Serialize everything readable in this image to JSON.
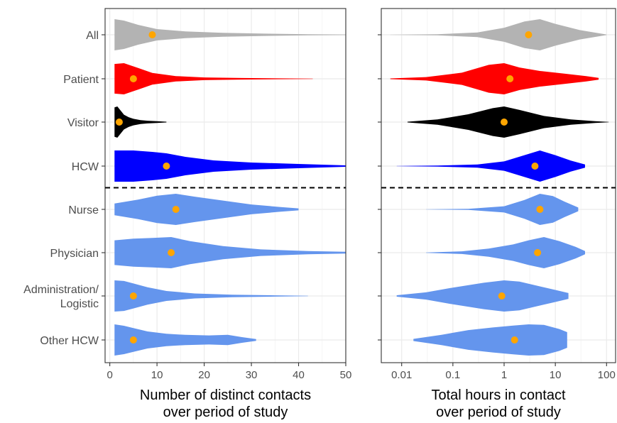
{
  "chart_data": [
    {
      "type": "violin",
      "xlabel": "Number of distinct contacts over period of study",
      "xlabel_lines": [
        "Number of distinct contacts",
        "over period of study"
      ],
      "xscale": "linear",
      "xlim": [
        -1,
        50
      ],
      "xticks": [
        0,
        10,
        20,
        30,
        40,
        50
      ],
      "xtick_labels": [
        "0",
        "10",
        "20",
        "30",
        "40",
        "50"
      ],
      "categories": [
        "All",
        "Patient",
        "Visitor",
        "HCW",
        "Nurse",
        "Physician",
        "Administration/ Logistic",
        "Other HCW"
      ],
      "series": [
        {
          "category": "All",
          "color": "#b3b3b3",
          "median": 9,
          "range": [
            1,
            50
          ],
          "density": [
            [
              1,
              0.55
            ],
            [
              3,
              0.5
            ],
            [
              6,
              0.35
            ],
            [
              10,
              0.2
            ],
            [
              16,
              0.12
            ],
            [
              24,
              0.07
            ],
            [
              33,
              0.04
            ],
            [
              42,
              0.02
            ],
            [
              50,
              0.01
            ]
          ]
        },
        {
          "category": "Patient",
          "color": "#ff0000",
          "median": 5,
          "range": [
            1,
            43
          ],
          "density": [
            [
              1,
              0.55
            ],
            [
              3,
              0.58
            ],
            [
              6,
              0.4
            ],
            [
              9,
              0.22
            ],
            [
              14,
              0.1
            ],
            [
              20,
              0.05
            ],
            [
              28,
              0.03
            ],
            [
              36,
              0.015
            ],
            [
              43,
              0.005
            ]
          ]
        },
        {
          "category": "Visitor",
          "color": "#000000",
          "median": 2,
          "range": [
            1,
            12
          ],
          "density": [
            [
              1,
              0.9
            ],
            [
              1.6,
              0.95
            ],
            [
              2.3,
              0.7
            ],
            [
              3,
              0.45
            ],
            [
              4,
              0.3
            ],
            [
              5,
              0.2
            ],
            [
              6.5,
              0.12
            ],
            [
              8,
              0.08
            ],
            [
              10,
              0.05
            ],
            [
              12,
              0.02
            ]
          ]
        },
        {
          "category": "HCW",
          "color": "#0000ff",
          "median": 12,
          "range": [
            1,
            50
          ],
          "density": [
            [
              1,
              0.22
            ],
            [
              5,
              0.22
            ],
            [
              9,
              0.2
            ],
            [
              12,
              0.18
            ],
            [
              16,
              0.13
            ],
            [
              22,
              0.08
            ],
            [
              30,
              0.05
            ],
            [
              40,
              0.03
            ],
            [
              50,
              0.01
            ]
          ]
        },
        {
          "category": "Nurse",
          "color": "#6495ed",
          "median": 14,
          "range": [
            1,
            40
          ],
          "density": [
            [
              1,
              0.06
            ],
            [
              6,
              0.1
            ],
            [
              10,
              0.14
            ],
            [
              14,
              0.16
            ],
            [
              18,
              0.13
            ],
            [
              24,
              0.09
            ],
            [
              30,
              0.05
            ],
            [
              36,
              0.025
            ],
            [
              40,
              0.01
            ]
          ]
        },
        {
          "category": "Physician",
          "color": "#6495ed",
          "median": 13,
          "range": [
            1,
            50
          ],
          "density": [
            [
              1,
              0.15
            ],
            [
              5,
              0.17
            ],
            [
              9,
              0.18
            ],
            [
              13,
              0.19
            ],
            [
              17,
              0.14
            ],
            [
              24,
              0.08
            ],
            [
              32,
              0.04
            ],
            [
              42,
              0.02
            ],
            [
              50,
              0.01
            ]
          ]
        },
        {
          "category": "Administration/ Logistic",
          "color": "#6495ed",
          "median": 5,
          "range": [
            1,
            42
          ],
          "density": [
            [
              1,
              0.5
            ],
            [
              3,
              0.48
            ],
            [
              5,
              0.4
            ],
            [
              8,
              0.28
            ],
            [
              12,
              0.16
            ],
            [
              18,
              0.08
            ],
            [
              26,
              0.04
            ],
            [
              35,
              0.02
            ],
            [
              42,
              0.005
            ]
          ]
        },
        {
          "category": "Other HCW",
          "color": "#6495ed",
          "median": 5,
          "range": [
            1,
            31
          ],
          "density": [
            [
              1,
              0.55
            ],
            [
              3,
              0.5
            ],
            [
              5,
              0.42
            ],
            [
              8,
              0.3
            ],
            [
              12,
              0.22
            ],
            [
              16,
              0.18
            ],
            [
              21,
              0.16
            ],
            [
              25,
              0.18
            ],
            [
              28,
              0.1
            ],
            [
              31,
              0.03
            ]
          ]
        }
      ],
      "separator_after": "HCW",
      "median_color": "#ffa500",
      "grid": true
    },
    {
      "type": "violin",
      "xlabel": "Total hours in contact over period of study",
      "xlabel_lines": [
        "Total hours in contact",
        "over period of study"
      ],
      "xscale": "log",
      "xlim": [
        0.004,
        150
      ],
      "xticks": [
        0.01,
        0.1,
        1,
        10,
        100
      ],
      "xtick_labels": [
        "0.01",
        "0.1",
        "1",
        "10",
        "100"
      ],
      "categories": [
        "All",
        "Patient",
        "Visitor",
        "HCW",
        "Nurse",
        "Physician",
        "Administration/ Logistic",
        "Other HCW"
      ],
      "series": [
        {
          "category": "All",
          "color": "#b3b3b3",
          "median": 3,
          "range": [
            0.006,
            100
          ],
          "density": [
            [
              0.006,
              0.005
            ],
            [
              0.05,
              0.03
            ],
            [
              0.3,
              0.15
            ],
            [
              1,
              0.45
            ],
            [
              2.5,
              0.85
            ],
            [
              5,
              1.0
            ],
            [
              10,
              0.7
            ],
            [
              30,
              0.3
            ],
            [
              100,
              0.02
            ]
          ]
        },
        {
          "category": "Patient",
          "color": "#ff0000",
          "median": 1.3,
          "range": [
            0.006,
            70
          ],
          "density": [
            [
              0.006,
              0.02
            ],
            [
              0.03,
              0.1
            ],
            [
              0.15,
              0.35
            ],
            [
              0.5,
              0.8
            ],
            [
              1,
              0.9
            ],
            [
              2,
              0.65
            ],
            [
              5,
              0.45
            ],
            [
              15,
              0.3
            ],
            [
              40,
              0.15
            ],
            [
              70,
              0.05
            ]
          ]
        },
        {
          "category": "Visitor",
          "color": "#000000",
          "median": 1,
          "range": [
            0.013,
            110
          ],
          "density": [
            [
              0.013,
              0.02
            ],
            [
              0.05,
              0.15
            ],
            [
              0.2,
              0.45
            ],
            [
              0.6,
              0.8
            ],
            [
              1,
              0.9
            ],
            [
              2,
              0.7
            ],
            [
              6,
              0.35
            ],
            [
              20,
              0.15
            ],
            [
              60,
              0.05
            ],
            [
              110,
              0.01
            ]
          ]
        },
        {
          "category": "HCW",
          "color": "#0000ff",
          "median": 4,
          "range": [
            0.008,
            38
          ],
          "density": [
            [
              0.008,
              0.005
            ],
            [
              0.05,
              0.03
            ],
            [
              0.3,
              0.1
            ],
            [
              1,
              0.3
            ],
            [
              2.5,
              0.7
            ],
            [
              5,
              1.0
            ],
            [
              10,
              0.7
            ],
            [
              20,
              0.35
            ],
            [
              38,
              0.1
            ]
          ]
        },
        {
          "category": "Nurse",
          "color": "#6495ed",
          "median": 5,
          "range": [
            0.03,
            28
          ],
          "density": [
            [
              0.03,
              0.005
            ],
            [
              0.2,
              0.03
            ],
            [
              1,
              0.2
            ],
            [
              2.5,
              0.6
            ],
            [
              5,
              1.0
            ],
            [
              9,
              0.85
            ],
            [
              15,
              0.5
            ],
            [
              28,
              0.12
            ]
          ]
        },
        {
          "category": "Physician",
          "color": "#6495ed",
          "median": 4.5,
          "range": [
            0.03,
            38
          ],
          "density": [
            [
              0.03,
              0.01
            ],
            [
              0.15,
              0.08
            ],
            [
              0.5,
              0.25
            ],
            [
              1.5,
              0.5
            ],
            [
              3,
              0.75
            ],
            [
              6,
              0.95
            ],
            [
              12,
              0.7
            ],
            [
              25,
              0.35
            ],
            [
              38,
              0.1
            ]
          ]
        },
        {
          "category": "Administration/ Logistic",
          "color": "#6495ed",
          "median": 0.9,
          "range": [
            0.008,
            18
          ],
          "density": [
            [
              0.008,
              0.03
            ],
            [
              0.03,
              0.15
            ],
            [
              0.1,
              0.35
            ],
            [
              0.4,
              0.55
            ],
            [
              1,
              0.65
            ],
            [
              2,
              0.6
            ],
            [
              5,
              0.4
            ],
            [
              10,
              0.25
            ],
            [
              18,
              0.12
            ]
          ]
        },
        {
          "category": "Other HCW",
          "color": "#6495ed",
          "median": 1.6,
          "range": [
            0.017,
            17
          ],
          "density": [
            [
              0.017,
              0.04
            ],
            [
              0.06,
              0.2
            ],
            [
              0.2,
              0.38
            ],
            [
              0.6,
              0.48
            ],
            [
              1.5,
              0.55
            ],
            [
              3,
              0.6
            ],
            [
              6,
              0.58
            ],
            [
              12,
              0.42
            ],
            [
              17,
              0.3
            ]
          ]
        }
      ],
      "separator_after": "HCW",
      "median_color": "#ffa500",
      "grid": true
    }
  ]
}
